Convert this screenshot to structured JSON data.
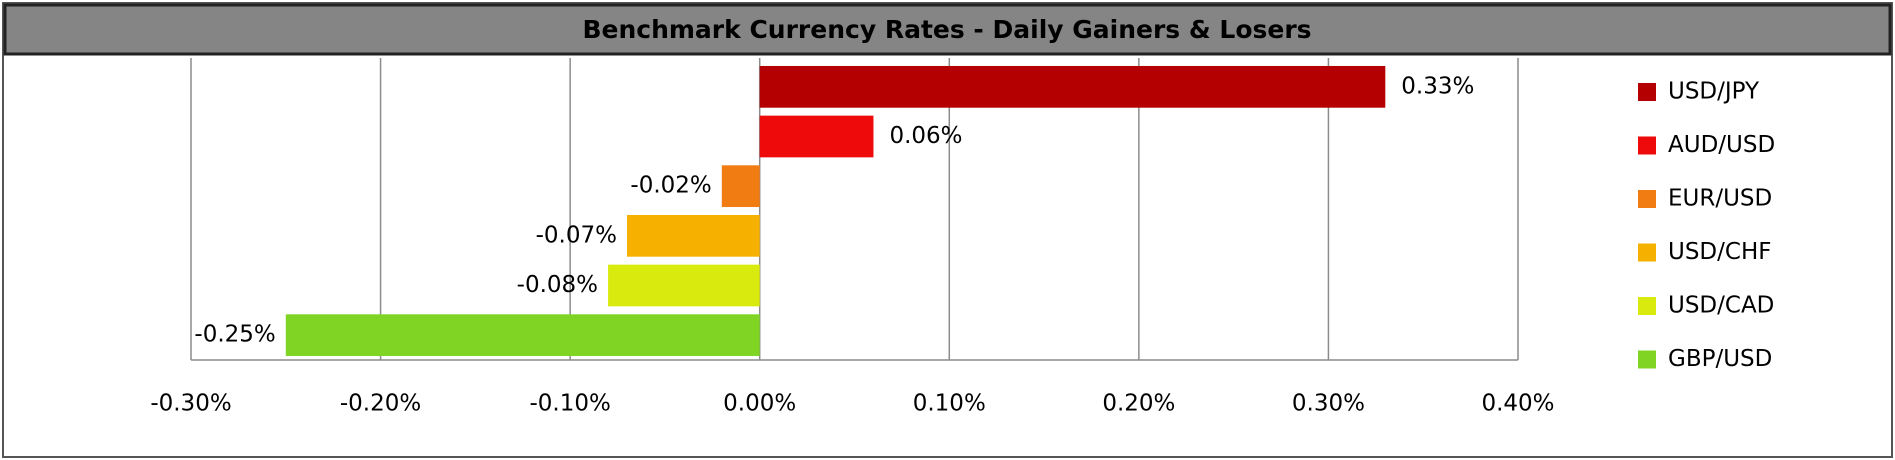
{
  "chart_data": {
    "type": "bar",
    "orientation": "horizontal",
    "title": "Benchmark Currency Rates - Daily Gainers & Losers",
    "categories": [
      "USD/JPY",
      "AUD/USD",
      "EUR/USD",
      "USD/CHF",
      "USD/CAD",
      "GBP/USD"
    ],
    "values": [
      0.33,
      0.06,
      -0.02,
      -0.07,
      -0.08,
      -0.25
    ],
    "value_labels": [
      "0.33%",
      "0.06%",
      "-0.02%",
      "-0.07%",
      "-0.08%",
      "-0.25%"
    ],
    "colors": [
      "#b40000",
      "#ee0a0a",
      "#f07c12",
      "#f6b100",
      "#d9ea0e",
      "#7fd424"
    ],
    "xlim": [
      -0.3,
      0.4
    ],
    "xticks": [
      {
        "value": -0.3,
        "label": "-0.30%"
      },
      {
        "value": -0.2,
        "label": "-0.20%"
      },
      {
        "value": -0.1,
        "label": "-0.10%"
      },
      {
        "value": 0,
        "label": "0.00%"
      },
      {
        "value": 0.1,
        "label": "0.10%"
      },
      {
        "value": 0.2,
        "label": "0.20%"
      },
      {
        "value": 0.3,
        "label": "0.30%"
      },
      {
        "value": 0.4,
        "label": "0.40%"
      }
    ],
    "grid": true,
    "legend": "right"
  }
}
